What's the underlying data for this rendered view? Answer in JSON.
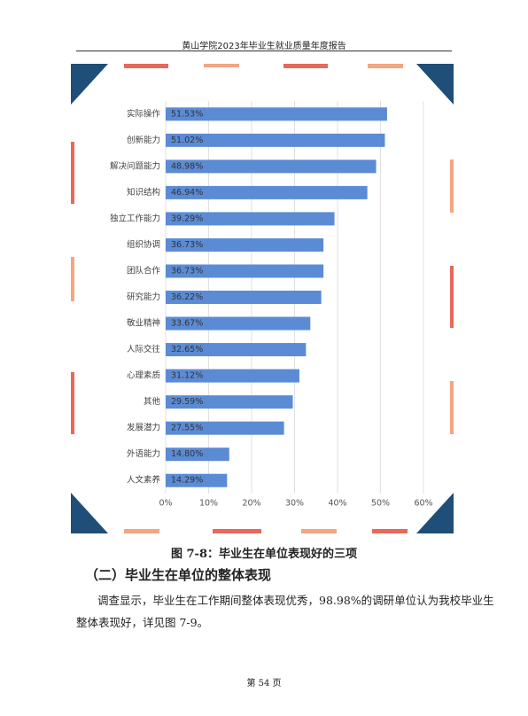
{
  "header": {
    "title": "黄山学院2023年毕业生就业质量年度报告"
  },
  "chart_data": {
    "type": "bar",
    "orientation": "horizontal",
    "categories": [
      "实际操作",
      "创新能力",
      "解决问题能力",
      "知识结构",
      "独立工作能力",
      "组织协调",
      "团队合作",
      "研究能力",
      "敬业精神",
      "人际交往",
      "心理素质",
      "其他",
      "发展潜力",
      "外语能力",
      "人文素养"
    ],
    "values": [
      51.53,
      51.02,
      48.98,
      46.94,
      39.29,
      36.73,
      36.73,
      36.22,
      33.67,
      32.65,
      31.12,
      29.59,
      27.55,
      14.8,
      14.29
    ],
    "value_labels": [
      "51.53%",
      "51.02%",
      "48.98%",
      "46.94%",
      "39.29%",
      "36.73%",
      "36.73%",
      "36.22%",
      "33.67%",
      "32.65%",
      "31.12%",
      "29.59%",
      "27.55%",
      "14.80%",
      "14.29%"
    ],
    "color": "#5b8bd5",
    "xlim": [
      0,
      60
    ],
    "xticks": [
      {
        "value": 0,
        "label": "0%"
      },
      {
        "value": 10,
        "label": "10%"
      },
      {
        "value": 20,
        "label": "20%"
      },
      {
        "value": 30,
        "label": "30%"
      },
      {
        "value": 40,
        "label": "40%"
      },
      {
        "value": 50,
        "label": "50%"
      },
      {
        "value": 60,
        "label": "60%"
      }
    ],
    "grid": true
  },
  "caption": "图 7-8：毕业生在单位表现好的三项",
  "section": "（二）毕业生在单位的整体表现",
  "body": [
    "调查显示，毕业生在工作期间整体表现优秀，98.98%的调研单位认为我校毕业生",
    "整体表现好，详见图 7-9。"
  ],
  "footer": "第 54 页"
}
